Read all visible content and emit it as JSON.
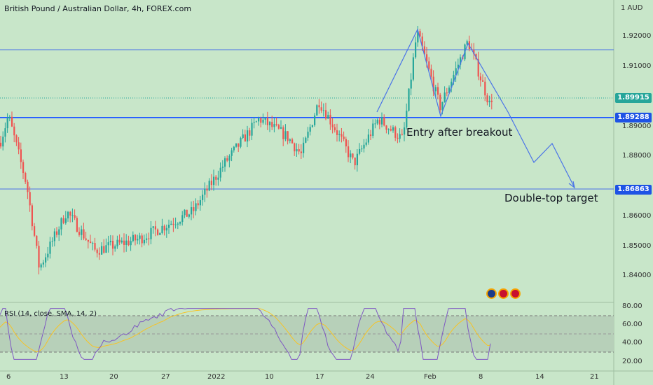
{
  "header": {
    "symbol_title": "British Pound / Australian Dollar, 4h, FOREX.com",
    "currency": "1  AUD"
  },
  "rsi": {
    "title": "RSI (14, close, SMA, 14, 2)"
  },
  "price_axis": {
    "labels": [
      "1.92000",
      "1.91000",
      "1.89000",
      "1.88000",
      "1.86000",
      "1.85000",
      "1.84000"
    ]
  },
  "price_tags": {
    "current": "1.89915",
    "breakout": "1.89288",
    "target": "1.86863"
  },
  "rsi_axis": {
    "labels": [
      "80.00",
      "60.00",
      "40.00",
      "20.00"
    ]
  },
  "time_axis": {
    "labels": [
      "6",
      "13",
      "20",
      "27",
      "2022",
      "10",
      "17",
      "24",
      "Feb",
      "8",
      "14",
      "21"
    ]
  },
  "annotations": {
    "entry": "Entry after breakout",
    "target": "Double-top target"
  },
  "colors": {
    "up": "#26a69a",
    "down": "#ef5350",
    "level_line": "#2962ff",
    "pattern_line": "#4a73e8",
    "rsi_line": "#7e57c2",
    "rsi_ma": "#f7c325",
    "tag_bg": "#1e53e5"
  },
  "events": {
    "icons": [
      "australia-flag-icon",
      "uk-flag-icon",
      "uk-flag-icon"
    ]
  }
}
